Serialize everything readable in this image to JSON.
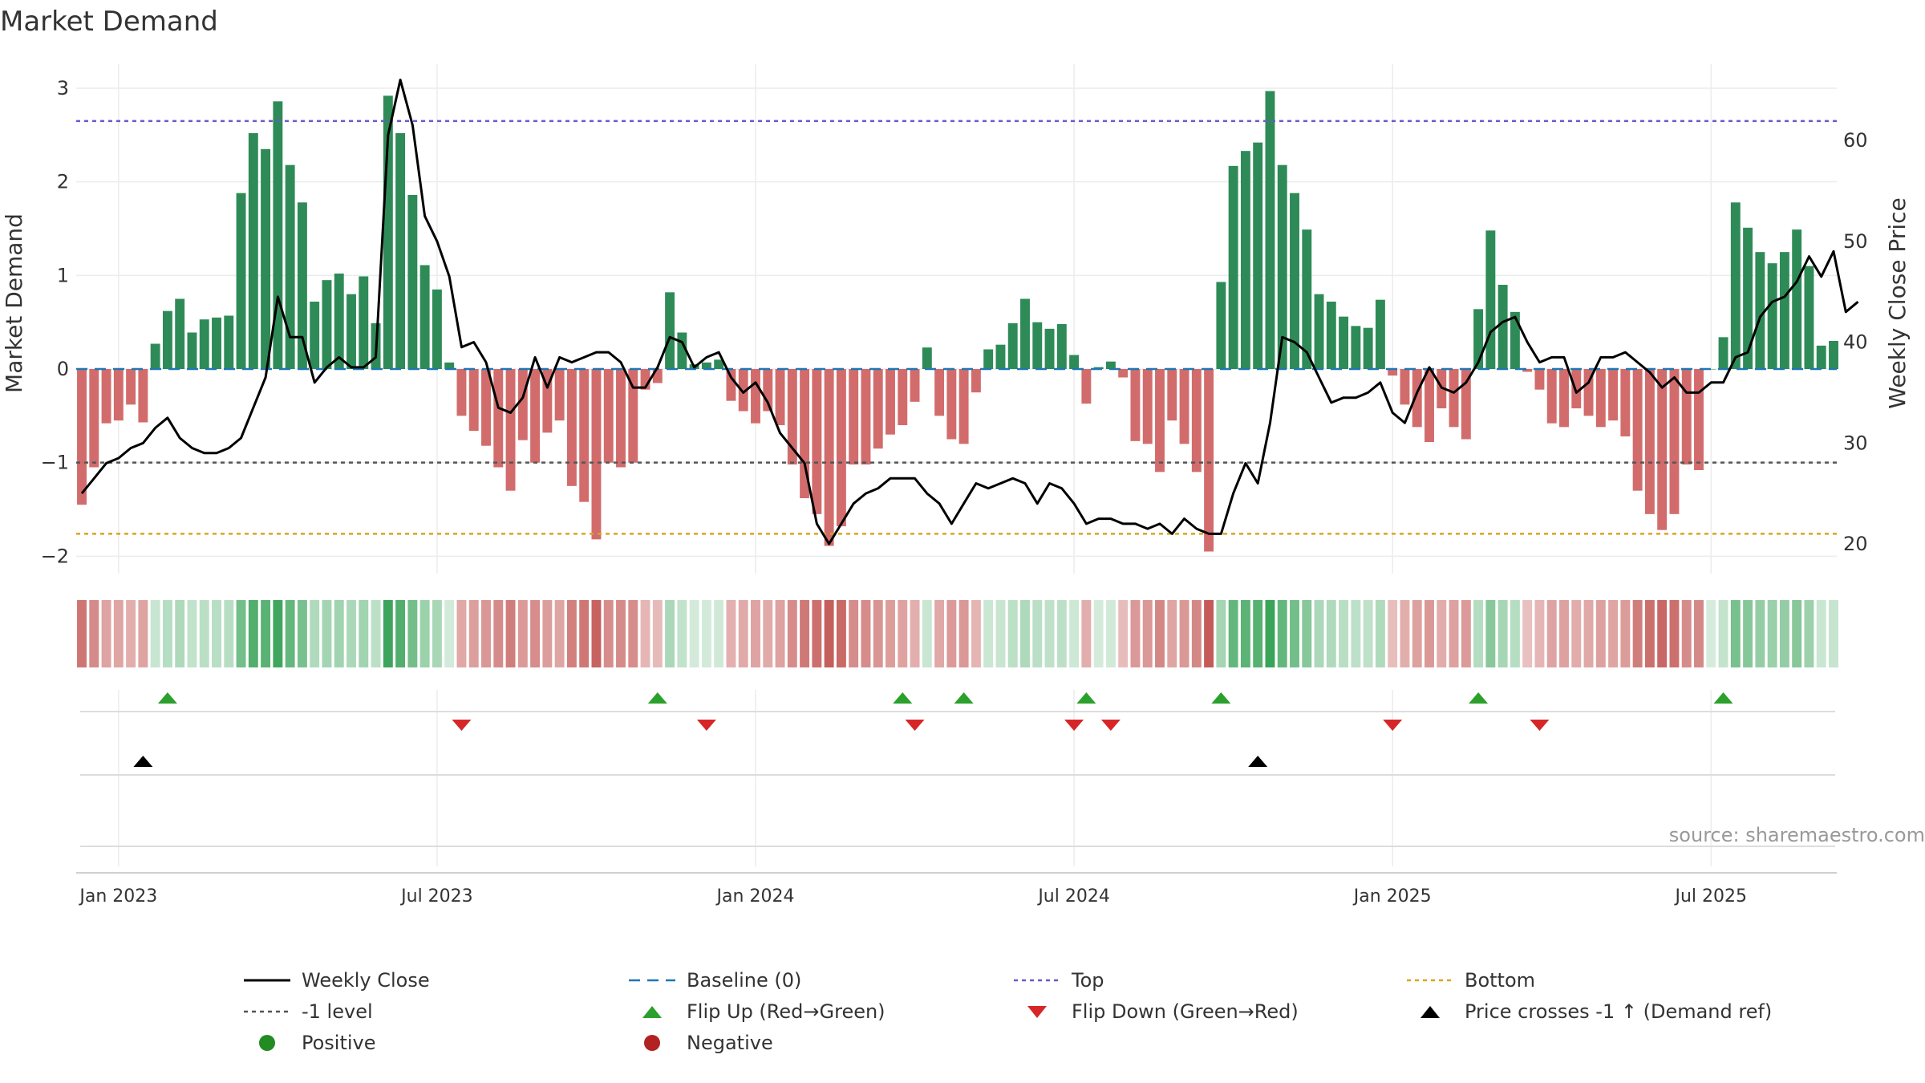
{
  "title": "Market Demand",
  "source": "source: sharemaestro.com",
  "colors": {
    "positive": "#2e8b57",
    "negative": "#cd5c5c",
    "top_line": "#6a5acd",
    "bottom_line": "#daa520",
    "level_line": "#555555",
    "baseline": "#1f77b4",
    "close_line": "#000000",
    "flip_up": "#2ca02c",
    "flip_down": "#d62728",
    "cross": "#000000"
  },
  "chart_data": {
    "type": "bar",
    "title": "Market Demand",
    "ylabel": "Market Demand",
    "y2label": "Weekly Close Price",
    "ylim": [
      -2.2,
      3.25
    ],
    "y2lim": [
      17.5,
      66.5
    ],
    "yticks": [
      {
        "v": 3,
        "label": "3"
      },
      {
        "v": 2,
        "label": "2"
      },
      {
        "v": 1,
        "label": "1"
      },
      {
        "v": 0,
        "label": "0"
      },
      {
        "v": -1,
        "label": "−1"
      },
      {
        "v": -2,
        "label": "−2"
      }
    ],
    "y2ticks": [
      {
        "v": 60,
        "label": "60"
      },
      {
        "v": 50,
        "label": "50"
      },
      {
        "v": 40,
        "label": "40"
      },
      {
        "v": 30,
        "label": "30"
      },
      {
        "v": 20,
        "label": "20"
      }
    ],
    "xticks": [
      {
        "week": 3,
        "label": "Jan 2023"
      },
      {
        "week": 29,
        "label": "Jul 2023"
      },
      {
        "week": 55,
        "label": "Jan 2024"
      },
      {
        "week": 81,
        "label": "Jul 2024"
      },
      {
        "week": 107,
        "label": "Jan 2025"
      },
      {
        "week": 133,
        "label": "Jul 2025"
      }
    ],
    "reference_levels": {
      "top": 2.65,
      "minus_one": -1.0,
      "bottom": -1.76,
      "baseline": 0
    },
    "demand": [
      -1.45,
      -1.05,
      -0.58,
      -0.55,
      -0.38,
      -0.57,
      0.27,
      0.62,
      0.75,
      0.39,
      0.53,
      0.55,
      0.57,
      1.88,
      2.52,
      2.35,
      2.86,
      2.18,
      1.78,
      0.72,
      0.95,
      1.02,
      0.8,
      0.99,
      0.49,
      2.92,
      2.52,
      1.86,
      1.11,
      0.85,
      0.07,
      -0.5,
      -0.66,
      -0.82,
      -1.05,
      -1.3,
      -0.76,
      -1.0,
      -0.68,
      -0.55,
      -1.25,
      -1.42,
      -1.82,
      -1.0,
      -1.05,
      -1.0,
      -0.22,
      -0.15,
      0.82,
      0.39,
      0.05,
      0.07,
      0.1,
      -0.34,
      -0.45,
      -0.58,
      -0.45,
      -0.6,
      -1.02,
      -1.38,
      -1.55,
      -1.89,
      -1.68,
      -1.02,
      -1.02,
      -0.85,
      -0.7,
      -0.6,
      -0.35,
      0.23,
      -0.5,
      -0.75,
      -0.8,
      -0.25,
      0.21,
      0.26,
      0.49,
      0.75,
      0.5,
      0.43,
      0.48,
      0.15,
      -0.37,
      0.02,
      0.08,
      -0.09,
      -0.77,
      -0.8,
      -1.1,
      -0.55,
      -0.8,
      -1.1,
      -1.95,
      0.93,
      2.17,
      2.33,
      2.42,
      2.97,
      2.18,
      1.88,
      1.49,
      0.8,
      0.72,
      0.56,
      0.46,
      0.44,
      0.74,
      -0.07,
      -0.38,
      -0.62,
      -0.78,
      -0.42,
      -0.62,
      -0.75,
      0.64,
      1.48,
      0.9,
      0.61,
      -0.03,
      -0.22,
      -0.58,
      -0.62,
      -0.42,
      -0.5,
      -0.62,
      -0.55,
      -0.72,
      -1.3,
      -1.55,
      -1.72,
      -1.55,
      -1.02,
      -1.08,
      0.0,
      0.34,
      1.78,
      1.51,
      1.25,
      1.13,
      1.25,
      1.49,
      1.1,
      0.25,
      0.3
    ],
    "close_prices": [
      25.0,
      26.5,
      28.0,
      28.5,
      29.5,
      30.0,
      31.5,
      32.5,
      30.5,
      29.5,
      29.0,
      29.0,
      29.5,
      30.5,
      33.5,
      36.5,
      44.5,
      40.5,
      40.5,
      36.0,
      37.5,
      38.5,
      37.5,
      37.5,
      38.5,
      60.5,
      66.0,
      61.5,
      52.5,
      50.0,
      46.5,
      39.5,
      40.0,
      38.0,
      33.5,
      33.0,
      34.5,
      38.5,
      35.5,
      38.5,
      38.0,
      38.5,
      39.0,
      39.0,
      38.0,
      35.5,
      35.5,
      37.5,
      40.5,
      40.0,
      37.5,
      38.5,
      39.0,
      36.5,
      35.0,
      36.0,
      34.0,
      31.0,
      29.5,
      28.0,
      22.0,
      20.0,
      22.0,
      24.0,
      25.0,
      25.5,
      26.5,
      26.5,
      26.5,
      25.0,
      24.0,
      22.0,
      24.0,
      26.0,
      25.5,
      26.0,
      26.5,
      26.0,
      24.0,
      26.0,
      25.5,
      24.0,
      22.0,
      22.5,
      22.5,
      22.0,
      22.0,
      21.5,
      22.0,
      21.0,
      22.5,
      21.5,
      21.0,
      21.0,
      25.0,
      28.0,
      26.0,
      32.0,
      40.5,
      40.0,
      39.0,
      36.5,
      34.0,
      34.5,
      34.5,
      35.0,
      36.0,
      33.0,
      32.0,
      35.0,
      37.5,
      35.5,
      35.0,
      36.0,
      38.0,
      41.0,
      42.0,
      42.5,
      40.0,
      38.0,
      38.5,
      38.5,
      35.0,
      36.0,
      38.5,
      38.5,
      39.0,
      38.0,
      37.0,
      35.5,
      36.5,
      35.0,
      35.0,
      36.0,
      36.0,
      38.5,
      39.0,
      42.5,
      44.0,
      44.5,
      46.0,
      48.5,
      46.5,
      49.0,
      43.0,
      44.0
    ],
    "flip_up_weeks": [
      7,
      47,
      67,
      72,
      82,
      93,
      114,
      134
    ],
    "flip_down_weeks": [
      31,
      51,
      68,
      81,
      84,
      107,
      119
    ],
    "price_cross_weeks": [
      5,
      96
    ],
    "legend": [
      {
        "key": "close",
        "label": "Weekly Close"
      },
      {
        "key": "baseline",
        "label": "Baseline (0)"
      },
      {
        "key": "top",
        "label": "Top"
      },
      {
        "key": "bottom",
        "label": "Bottom"
      },
      {
        "key": "minus_one",
        "label": "-1 level"
      },
      {
        "key": "flip_up",
        "label": "Flip Up (Red→Green)"
      },
      {
        "key": "flip_down",
        "label": "Flip Down (Green→Red)"
      },
      {
        "key": "cross",
        "label": "Price crosses -1 ↑ (Demand ref)"
      },
      {
        "key": "positive",
        "label": "Positive"
      },
      {
        "key": "negative",
        "label": "Negative"
      }
    ]
  }
}
